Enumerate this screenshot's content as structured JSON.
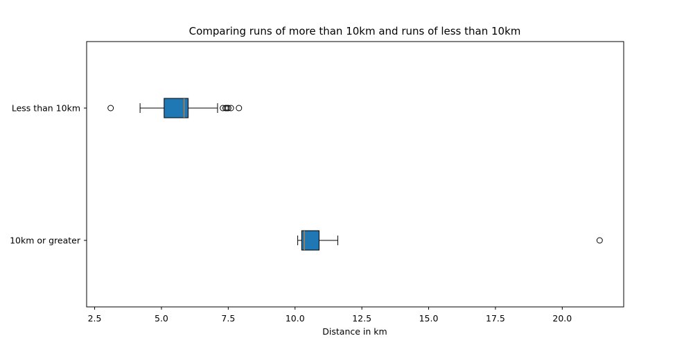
{
  "chart_data": {
    "type": "boxplot",
    "orientation": "horizontal",
    "title": "Comparing runs of more than 10km and runs of less than 10km",
    "xlabel": "Distance in km",
    "ylabel": "",
    "xlim": [
      2.2,
      22.3
    ],
    "xticks": [
      2.5,
      5.0,
      7.5,
      10.0,
      12.5,
      15.0,
      17.5,
      20.0
    ],
    "xtick_labels": [
      "2.5",
      "5.0",
      "7.5",
      "10.0",
      "12.5",
      "15.0",
      "17.5",
      "20.0"
    ],
    "grid": false,
    "box_color": "#1f77b4",
    "median_color": "#ff7f0e",
    "series": [
      {
        "label": "Less than 10km",
        "whisker_low": 4.2,
        "q1": 5.1,
        "median": 5.85,
        "q3": 6.0,
        "whisker_high": 7.1,
        "outliers": [
          3.1,
          7.3,
          7.4,
          7.45,
          7.5,
          7.6,
          7.9
        ]
      },
      {
        "label": "10km or greater",
        "whisker_low": 10.1,
        "q1": 10.25,
        "median": 10.35,
        "q3": 10.9,
        "whisker_high": 11.6,
        "outliers": [
          21.4
        ]
      }
    ]
  }
}
